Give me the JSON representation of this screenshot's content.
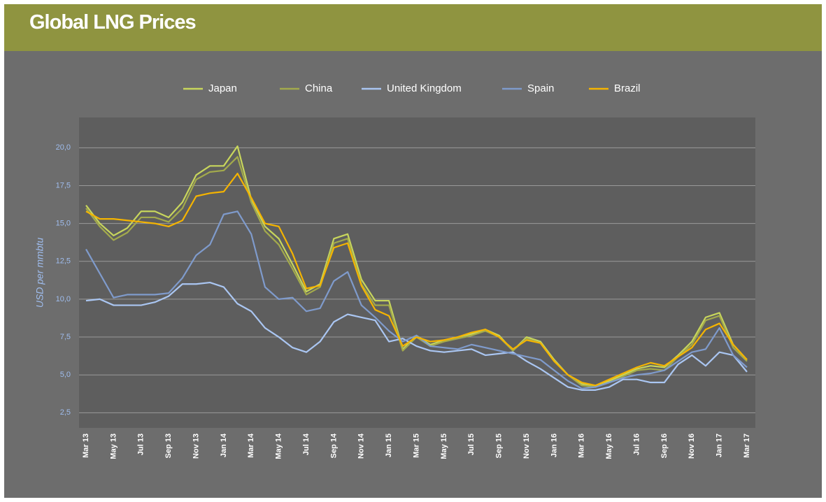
{
  "header": {
    "title": "Global LNG Prices"
  },
  "chart_data": {
    "type": "line",
    "y_label": "USD per mmbtu",
    "categories": [
      "Mar 13",
      null,
      "May 13",
      null,
      "Jul 13",
      null,
      "Sep 13",
      null,
      "Nov 13",
      null,
      "Jan 14",
      null,
      "Mar 14",
      null,
      "May 14",
      null,
      "Jul 14",
      null,
      "Sep 14",
      null,
      "Nov 14",
      null,
      "Jan 15",
      null,
      "Mar 15",
      null,
      "May 15",
      null,
      "Jul 15",
      null,
      "Sep 15",
      null,
      "Nov 15",
      null,
      "Jan 16",
      null,
      "Mar 16",
      null,
      "May 16",
      null,
      "Jul 16",
      null,
      "Sep 16",
      null,
      "Nov 16",
      null,
      "Jan 17",
      null,
      "Mar 17"
    ],
    "series": [
      {
        "name": "Japan",
        "color": "#c8d65c",
        "values": [
          16.2,
          15.0,
          14.2,
          14.7,
          15.8,
          15.8,
          15.4,
          16.4,
          18.2,
          18.8,
          18.8,
          20.1,
          16.6,
          14.8,
          14.0,
          12.3,
          10.5,
          11.0,
          14.0,
          14.3,
          11.3,
          9.9,
          9.9,
          6.7,
          7.6,
          7.0,
          7.3,
          7.5,
          7.7,
          8.0,
          7.6,
          6.6,
          7.5,
          7.2,
          6.0,
          5.0,
          4.4,
          4.3,
          4.6,
          5.0,
          5.4,
          5.6,
          5.5,
          6.3,
          7.2,
          8.8,
          9.1,
          7.0,
          6.0
        ]
      },
      {
        "name": "China",
        "color": "#a3aa4c",
        "values": [
          16.0,
          14.8,
          13.9,
          14.4,
          15.4,
          15.4,
          15.1,
          16.0,
          17.9,
          18.4,
          18.5,
          19.4,
          16.4,
          14.5,
          13.6,
          12.0,
          10.3,
          10.8,
          13.7,
          14.0,
          11.0,
          9.6,
          9.6,
          6.6,
          7.5,
          6.9,
          7.2,
          7.4,
          7.6,
          7.9,
          7.5,
          6.6,
          7.4,
          7.1,
          5.9,
          5.0,
          4.3,
          4.2,
          4.5,
          4.9,
          5.3,
          5.4,
          5.3,
          6.2,
          7.0,
          8.6,
          8.9,
          6.8,
          5.9
        ]
      },
      {
        "name": "United Kingdom",
        "color": "#aac6f2",
        "values": [
          9.9,
          10.0,
          9.6,
          9.6,
          9.6,
          9.8,
          10.2,
          11.0,
          11.0,
          11.1,
          10.8,
          9.7,
          9.2,
          8.1,
          7.5,
          6.8,
          6.5,
          7.2,
          8.5,
          9.0,
          8.8,
          8.6,
          7.2,
          7.4,
          6.9,
          6.6,
          6.5,
          6.6,
          6.7,
          6.3,
          6.4,
          6.5,
          5.9,
          5.4,
          4.8,
          4.2,
          4.0,
          4.0,
          4.2,
          4.7,
          4.7,
          4.5,
          4.5,
          5.7,
          6.3,
          5.6,
          6.5,
          6.3,
          5.2
        ]
      },
      {
        "name": "Spain",
        "color": "#7f9bcc",
        "values": [
          13.3,
          11.7,
          10.1,
          10.3,
          10.3,
          10.3,
          10.4,
          11.4,
          12.9,
          13.6,
          15.6,
          15.8,
          14.3,
          10.8,
          10.0,
          10.1,
          9.2,
          9.4,
          11.2,
          11.8,
          9.6,
          8.8,
          7.9,
          7.2,
          7.6,
          6.9,
          6.8,
          6.7,
          7.0,
          6.8,
          6.6,
          6.4,
          6.2,
          6.0,
          5.3,
          4.6,
          4.1,
          4.2,
          4.5,
          4.8,
          5.0,
          5.1,
          5.3,
          5.9,
          6.5,
          6.7,
          8.1,
          6.3,
          5.5
        ]
      },
      {
        "name": "Brazil",
        "color": "#f5b400",
        "values": [
          15.8,
          15.3,
          15.3,
          15.2,
          15.1,
          15.0,
          14.8,
          15.2,
          16.8,
          17.0,
          17.1,
          18.3,
          16.7,
          15.0,
          14.8,
          13.0,
          10.7,
          10.9,
          13.4,
          13.7,
          10.9,
          9.3,
          8.9,
          6.9,
          7.5,
          7.2,
          7.3,
          7.5,
          7.8,
          8.0,
          7.5,
          6.7,
          7.3,
          7.1,
          5.9,
          5.0,
          4.5,
          4.3,
          4.7,
          5.1,
          5.5,
          5.8,
          5.6,
          6.2,
          6.8,
          8.0,
          8.4,
          7.0,
          6.0
        ]
      }
    ],
    "ylim": [
      1.5,
      22
    ],
    "yticks": [
      {
        "value": 2.5,
        "label": "2,5"
      },
      {
        "value": 5,
        "label": "5,0"
      },
      {
        "value": 7.5,
        "label": "7,5"
      },
      {
        "value": 10,
        "label": "10,0"
      },
      {
        "value": 12.5,
        "label": "12,5"
      },
      {
        "value": 15,
        "label": "15,0"
      },
      {
        "value": 17.5,
        "label": "17,5"
      },
      {
        "value": 20,
        "label": "20,0"
      }
    ],
    "grid": true,
    "legend": "top"
  }
}
